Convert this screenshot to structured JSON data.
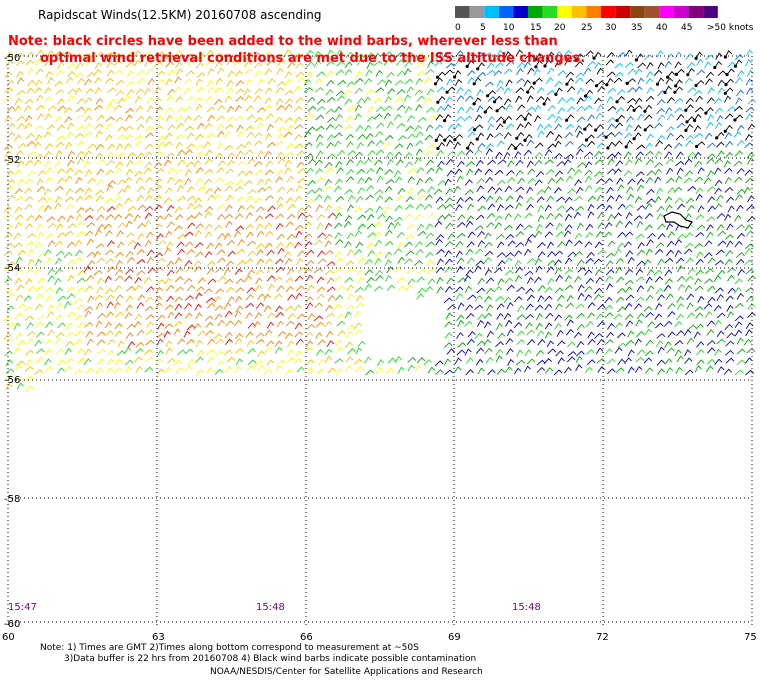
{
  "header": {
    "title": "Rapidscat Winds(12.5KM) 20160708 ascending",
    "note_line1": "Note: black circles have been added to the wind barbs, wherever less than",
    "note_line2": "optimal wind retrieval conditions are met due to the ISS altitude changes."
  },
  "legend": {
    "labels": [
      "0",
      "5",
      "10",
      "15",
      "20",
      "25",
      "30",
      "35",
      "40",
      "45",
      ">50 knots"
    ],
    "colors": [
      "#555555",
      "#999999",
      "#00bfff",
      "#0066ff",
      "#0000cc",
      "#00aa00",
      "#22dd22",
      "#ffff00",
      "#ffc000",
      "#ff8000",
      "#ff0000",
      "#cc0000",
      "#8b4513",
      "#a0522d",
      "#ff00ff",
      "#cc00cc",
      "#800080",
      "#4b0082"
    ]
  },
  "axes": {
    "x_ticks": [
      "60",
      "63",
      "66",
      "69",
      "72",
      "75"
    ],
    "y_ticks": [
      "-50",
      "-52",
      "-54",
      "-56",
      "-58",
      "-60"
    ]
  },
  "times": [
    "15:47",
    "15:48",
    "15:48"
  ],
  "footer": {
    "line1": "Note: 1) Times are GMT 2)Times along bottom correspond to measurement at ~50S",
    "line2": "3)Data buffer is 22 hrs from 20160708 4) Black wind barbs indicate possible contamination",
    "line3": "NOAA/NESDIS/Center for Satellite Applications and Research"
  }
}
